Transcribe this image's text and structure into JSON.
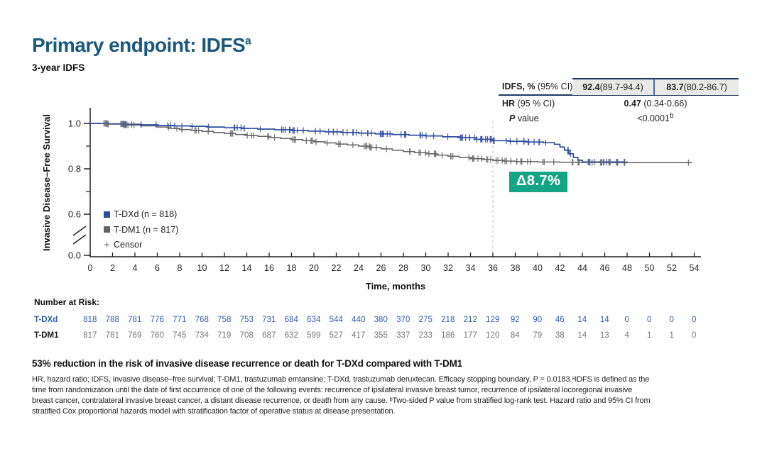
{
  "colors": {
    "title_blue": "#1a587f",
    "navy_border": "#1d3a5f",
    "divider_blue": "#4a69a8",
    "cell_bg": "#e9e9e8",
    "tdxd_blue": "#2e4c9e",
    "tdm1_gray": "#646464",
    "censor_gray": "#6e6e6e",
    "risk_tdxd_blue": "#2d5aa9",
    "risk_tdm1_gray": "#757575",
    "delta_green": "#14a584",
    "dashed_line_gray": "#c9c9c9",
    "axis_black": "#231f20"
  },
  "header": {
    "title": "Primary endpoint: IDFS",
    "title_sup": "a",
    "subtitle": "3-year IDFS"
  },
  "stats_table": {
    "row1": {
      "label_bold": "IDFS, %",
      "label_rest": " (95% CI)",
      "tdxd_bold": "92.4",
      "tdxd_rest": " (89.7-94.4)",
      "tdm1_bold": "83.7",
      "tdm1_rest": " (80.2-86.7)"
    },
    "row2": {
      "label_bold": "HR",
      "label_rest": " (95 % CI)",
      "value_bold": "0.47",
      "value_rest": " (0.34-0.66)"
    },
    "row3": {
      "label_bold": "P",
      "label_rest": " value",
      "value": "<0.0001",
      "value_sup": "b"
    }
  },
  "chart": {
    "y_axis_label": "Invasive Disease–Free Survival",
    "x_axis_label": "Time, months",
    "y_tick_labels": [
      "1.0",
      "0.8",
      "0.6",
      "0.0"
    ],
    "legend": [
      {
        "label": "T-DXd (n = 818)",
        "marker": "square",
        "color": "#2e4c9e"
      },
      {
        "label": "T-DM1 (n = 817)",
        "marker": "square",
        "color": "#646464"
      },
      {
        "label": "Censor",
        "marker": "+",
        "color": "#6e6e6e"
      }
    ],
    "delta_label": "Δ8.7%",
    "reference_line_month": 36
  },
  "chart_data": {
    "type": "line",
    "subtype": "kaplan_meier_step",
    "title": "3-year IDFS",
    "xlabel": "Time, months",
    "ylabel": "Invasive Disease–Free Survival",
    "xlim": [
      0,
      54
    ],
    "x_ticks": [
      0,
      2,
      4,
      6,
      8,
      10,
      12,
      14,
      16,
      18,
      20,
      22,
      24,
      26,
      28,
      30,
      32,
      34,
      36,
      38,
      40,
      42,
      44,
      46,
      48,
      50,
      52,
      54
    ],
    "y_ticks_labeled": [
      0.0,
      0.6,
      0.8,
      1.0
    ],
    "y_ticks_minor": [
      0.7,
      0.9
    ],
    "y_axis_break_between": [
      0.05,
      0.55
    ],
    "grid": false,
    "legend_position": "inside-left",
    "annotations": {
      "delta_label": "Δ8.7%",
      "dashed_reference_month": 36
    },
    "stats": {
      "idfs_3yr_pct_95ci": {
        "T-DXd": "92.4 (89.7-94.4)",
        "T-DM1": "83.7 (80.2-86.7)"
      },
      "hr_95ci": "0.47 (0.34-0.66)",
      "p_value": "<0.0001"
    },
    "series": [
      {
        "name": "T-DXd",
        "n": 818,
        "color": "#2e4c9e",
        "idfs_3yr_pct": 92.4,
        "points": [
          [
            0,
            1.0
          ],
          [
            1.5,
            0.998
          ],
          [
            3,
            0.996
          ],
          [
            4.5,
            0.994
          ],
          [
            6,
            0.991
          ],
          [
            7.5,
            0.989
          ],
          [
            9,
            0.987
          ],
          [
            10.5,
            0.984
          ],
          [
            12,
            0.981
          ],
          [
            13.5,
            0.978
          ],
          [
            15,
            0.975
          ],
          [
            16.5,
            0.972
          ],
          [
            18,
            0.969
          ],
          [
            19.5,
            0.966
          ],
          [
            21,
            0.963
          ],
          [
            22.5,
            0.96
          ],
          [
            24,
            0.957
          ],
          [
            25.5,
            0.954
          ],
          [
            27,
            0.951
          ],
          [
            28.5,
            0.948
          ],
          [
            30,
            0.945
          ],
          [
            31.5,
            0.941
          ],
          [
            33,
            0.937
          ],
          [
            34.5,
            0.93
          ],
          [
            36,
            0.924
          ],
          [
            37.5,
            0.921
          ],
          [
            39,
            0.918
          ],
          [
            40.5,
            0.915
          ],
          [
            41.5,
            0.908
          ],
          [
            42,
            0.896
          ],
          [
            42.4,
            0.882
          ],
          [
            42.8,
            0.866
          ],
          [
            43.2,
            0.85
          ],
          [
            43.6,
            0.838
          ],
          [
            44,
            0.83
          ],
          [
            47.8,
            0.83
          ]
        ]
      },
      {
        "name": "T-DM1",
        "n": 817,
        "color": "#646464",
        "idfs_3yr_pct": 83.7,
        "points": [
          [
            0,
            1.0
          ],
          [
            1.5,
            0.997
          ],
          [
            3,
            0.993
          ],
          [
            4.5,
            0.989
          ],
          [
            6,
            0.984
          ],
          [
            7,
            0.978
          ],
          [
            8,
            0.973
          ],
          [
            9,
            0.969
          ],
          [
            10,
            0.965
          ],
          [
            11,
            0.96
          ],
          [
            12,
            0.956
          ],
          [
            13,
            0.951
          ],
          [
            14,
            0.947
          ],
          [
            15,
            0.943
          ],
          [
            16,
            0.938
          ],
          [
            17,
            0.934
          ],
          [
            18,
            0.929
          ],
          [
            19,
            0.924
          ],
          [
            20,
            0.919
          ],
          [
            21,
            0.914
          ],
          [
            22,
            0.909
          ],
          [
            23,
            0.905
          ],
          [
            24,
            0.9
          ],
          [
            25,
            0.894
          ],
          [
            26,
            0.888
          ],
          [
            27,
            0.882
          ],
          [
            28,
            0.876
          ],
          [
            29,
            0.871
          ],
          [
            30,
            0.866
          ],
          [
            31,
            0.86
          ],
          [
            32,
            0.855
          ],
          [
            33,
            0.85
          ],
          [
            34,
            0.845
          ],
          [
            35,
            0.841
          ],
          [
            36,
            0.837
          ],
          [
            37,
            0.834
          ],
          [
            38,
            0.832
          ],
          [
            40,
            0.83
          ],
          [
            42,
            0.829
          ],
          [
            44,
            0.828
          ],
          [
            46,
            0.827
          ],
          [
            53.8,
            0.827
          ]
        ]
      }
    ]
  },
  "number_at_risk": {
    "title": "Number at Risk:",
    "timepoints": [
      0,
      2,
      4,
      6,
      8,
      10,
      12,
      14,
      16,
      18,
      20,
      22,
      24,
      26,
      28,
      30,
      32,
      34,
      36,
      38,
      40,
      42,
      44,
      46,
      48,
      50,
      52,
      54
    ],
    "rows": [
      {
        "label": "T-DXd",
        "values": [
          818,
          788,
          781,
          776,
          771,
          768,
          758,
          753,
          731,
          684,
          634,
          544,
          440,
          380,
          370,
          275,
          218,
          212,
          129,
          92,
          90,
          46,
          14,
          14,
          0,
          0,
          0,
          0
        ]
      },
      {
        "label": "T-DM1",
        "values": [
          817,
          781,
          769,
          760,
          745,
          734,
          719,
          708,
          687,
          632,
          599,
          527,
          417,
          355,
          337,
          233,
          186,
          177,
          120,
          84,
          79,
          38,
          14,
          13,
          4,
          1,
          1,
          0
        ]
      }
    ]
  },
  "key_finding": "53% reduction in the risk of invasive disease recurrence or death for T-DXd compared with T-DM1",
  "footnote_lines": [
    "HR, hazard ratio; IDFS, invasive disease–free survival; T-DM1, trastuzumab emtansine; T-DXd, trastuzumab deruxtecan. Efficacy stopping boundary, P = 0.0183.ᵃIDFS is defined as the",
    "time from randomization until the date of first occurrence of one of the following events: recurrence of ipsilateral invasive breast tumor, recurrence of ipsilateral locoregional invasive",
    "breast cancer, contralateral invasive breast cancer, a distant disease recurrence, or death from any cause. ᵇTwo-sided P value from stratified log-rank test. Hazard ratio and 95% CI from",
    "stratified Cox proportional hazards model with stratification factor of operative status at disease presentation."
  ]
}
